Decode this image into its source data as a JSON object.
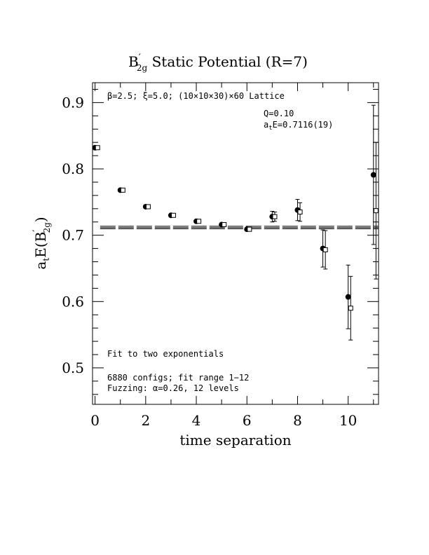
{
  "chart_data": {
    "type": "scatter",
    "title": "B′2g Static Potential (R=7)",
    "title_parts": {
      "main": "B",
      "prime": "′",
      "sub": "2g",
      "rest": " Static Potential (R=7)"
    },
    "xlabel": "time separation",
    "ylabel": "a",
    "ylabel_parts": {
      "a": "a",
      "t": "t",
      "E": "E(B",
      "prime": "′",
      "sub": "2g",
      "close": ")"
    },
    "xlim": [
      -0.1,
      11.2
    ],
    "ylim": [
      0.445,
      0.93
    ],
    "xticks": [
      0,
      2,
      4,
      6,
      8,
      10
    ],
    "yticks": [
      0.5,
      0.6,
      0.7,
      0.8,
      0.9
    ],
    "ytick_labels": [
      "0.5",
      "0.6",
      "0.7",
      "0.8",
      "0.9"
    ],
    "xtick_labels": [
      "0",
      "2",
      "4",
      "6",
      "8",
      "10"
    ],
    "fit_line": {
      "y": 0.7116,
      "err": 0.0019,
      "x_start": 0.2,
      "x_end": 11.2
    },
    "series": [
      {
        "marker": "filled-circle",
        "points": [
          {
            "x": 0,
            "y": 0.832,
            "err": 0.0
          },
          {
            "x": 1,
            "y": 0.768,
            "err": 0.0
          },
          {
            "x": 2,
            "y": 0.743,
            "err": 0.0
          },
          {
            "x": 3,
            "y": 0.73,
            "err": 0.0
          },
          {
            "x": 4,
            "y": 0.721,
            "err": 0.0
          },
          {
            "x": 5,
            "y": 0.716,
            "err": 0.0
          },
          {
            "x": 6,
            "y": 0.709,
            "err": 0.0
          },
          {
            "x": 7,
            "y": 0.728,
            "err": 0.008
          },
          {
            "x": 8,
            "y": 0.738,
            "err": 0.016
          },
          {
            "x": 9,
            "y": 0.68,
            "err": 0.028
          },
          {
            "x": 10,
            "y": 0.607,
            "err": 0.048
          },
          {
            "x": 11,
            "y": 0.791,
            "err": 0.105
          }
        ]
      },
      {
        "marker": "open-square",
        "x_offset": 0.1,
        "points": [
          {
            "x": 0,
            "y": 0.832,
            "err": 0.0
          },
          {
            "x": 1,
            "y": 0.768,
            "err": 0.0
          },
          {
            "x": 2,
            "y": 0.743,
            "err": 0.0
          },
          {
            "x": 3,
            "y": 0.73,
            "err": 0.0
          },
          {
            "x": 4,
            "y": 0.721,
            "err": 0.0
          },
          {
            "x": 5,
            "y": 0.716,
            "err": 0.0
          },
          {
            "x": 6,
            "y": 0.709,
            "err": 0.0
          },
          {
            "x": 7,
            "y": 0.728,
            "err": 0.007
          },
          {
            "x": 8,
            "y": 0.735,
            "err": 0.014
          },
          {
            "x": 9,
            "y": 0.678,
            "err": 0.029
          },
          {
            "x": 10,
            "y": 0.59,
            "err": 0.048
          },
          {
            "x": 11,
            "y": 0.737,
            "err": 0.103
          }
        ]
      }
    ],
    "annotations": {
      "lattice": "β=2.5; ξ=5.0; (10×10×30)×60 Lattice",
      "q": "Q=0.10",
      "ate_prefix": "a",
      "ate_sub": "t",
      "ate_value": "E=0.7116(19)",
      "fit_note": "Fit to two exponentials",
      "configs": "6880 configs; fit range 1−12",
      "fuzzing": "Fuzzing: α=0.26, 12 levels"
    }
  }
}
